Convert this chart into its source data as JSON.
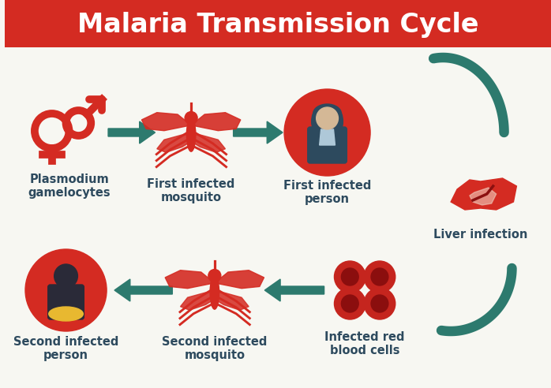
{
  "title": "Malaria Transmission Cycle",
  "title_bg": "#d42b22",
  "title_color": "#ffffff",
  "title_fontsize": 24,
  "bg_color": "#f7f7f2",
  "red": "#d42b22",
  "teal": "#2d7a6e",
  "dark_navy": "#2d4a5e",
  "skin": "#d4b896",
  "shirt_light": "#aec8d8",
  "yellow": "#e8b830",
  "dark_person": "#2a2a38",
  "labels": {
    "plasmodium": "Plasmodium\ngamelocytes",
    "first_mosquito": "First infected\nmosquito",
    "first_person": "First infected\nperson",
    "liver": "Liver infection",
    "second_person": "Second infected\nperson",
    "second_mosquito": "Second infected\nmosquito",
    "blood_cells": "Infected red\nblood cells"
  },
  "label_fontsize": 10.5,
  "label_color": "#2d4a5e"
}
